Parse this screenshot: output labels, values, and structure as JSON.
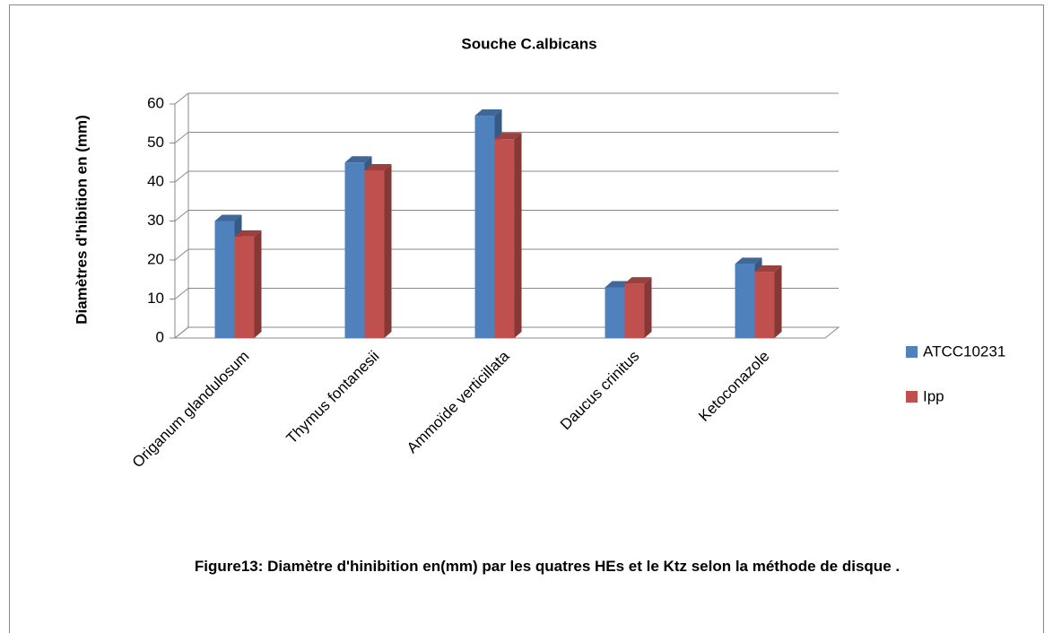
{
  "chart_data": {
    "type": "bar3d",
    "title": "Souche C.albicans",
    "y_label": "Diamètres d'hibition en (mm)",
    "caption": "Figure13: Diamètre d'hinibition en(mm) par les quatres HEs et le Ktz selon la méthode de disque .",
    "categories": [
      "Origanum glandulosum",
      "Thymus fontanesii",
      "Ammoïde verticillata",
      "Daucus crinitus",
      "Ketoconazole"
    ],
    "series": [
      {
        "name": "ATCC10231",
        "color": "#4f81bd",
        "values": [
          30,
          45,
          57,
          13,
          19
        ]
      },
      {
        "name": "Ipp",
        "color": "#c0504d",
        "values": [
          26,
          43,
          51,
          14,
          17
        ]
      }
    ],
    "ylim": [
      0,
      60
    ],
    "yticks": [
      0,
      10,
      20,
      30,
      40,
      50,
      60
    ],
    "grid": true,
    "legend": "right"
  }
}
